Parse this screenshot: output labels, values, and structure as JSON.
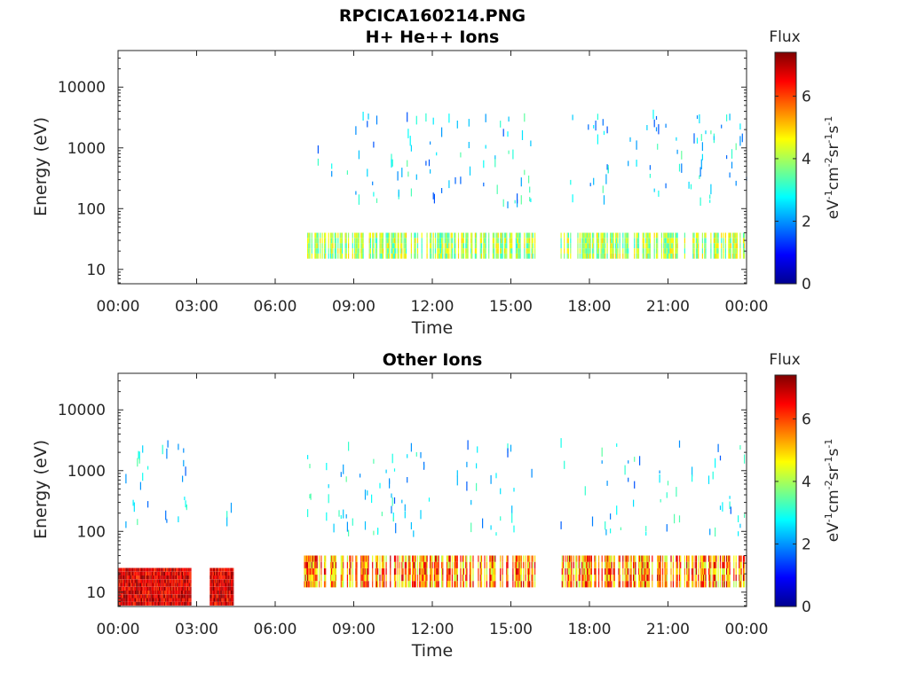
{
  "figure": {
    "title": "RPCICA160214.PNG"
  },
  "colors": {
    "axis": "#262626",
    "colormap": [
      "#00008f",
      "#0000ff",
      "#0080ff",
      "#00ffff",
      "#80ff80",
      "#ffff00",
      "#ff8000",
      "#ff0000",
      "#800000"
    ]
  },
  "chart_data": [
    {
      "type": "heatmap",
      "title": "H+ He++ Ions",
      "xlabel": "Time",
      "ylabel": "Energy (eV)",
      "x_ticks": [
        "00:00",
        "03:00",
        "06:00",
        "09:00",
        "12:00",
        "15:00",
        "18:00",
        "21:00",
        "00:00"
      ],
      "x_range_hours": [
        0,
        24
      ],
      "y_scale": "log",
      "y_ticks": [
        "10",
        "100",
        "1000",
        "10000"
      ],
      "y_range": [
        5.8,
        40000
      ],
      "colorbar": {
        "title": "Flux",
        "label": "eV-1cm-2sr-1s-1",
        "ticks": [
          "0",
          "2",
          "4",
          "6"
        ],
        "range": [
          0,
          7.4
        ]
      },
      "observed_intervals_hours": [
        [
          7.1,
          15.9
        ],
        [
          16.9,
          24.0
        ]
      ],
      "bands": [
        {
          "name": "low energy band",
          "energy_eV": [
            15,
            40
          ],
          "flux": [
            3,
            5
          ]
        },
        {
          "name": "high energy scatter",
          "energy_eV": [
            100,
            3000
          ],
          "flux": [
            1.5,
            3.5
          ]
        }
      ]
    },
    {
      "type": "heatmap",
      "title": "Other Ions",
      "xlabel": "Time",
      "ylabel": "Energy (eV)",
      "x_ticks": [
        "00:00",
        "03:00",
        "06:00",
        "09:00",
        "12:00",
        "15:00",
        "18:00",
        "21:00",
        "00:00"
      ],
      "x_range_hours": [
        0,
        24
      ],
      "y_scale": "log",
      "y_ticks": [
        "10",
        "100",
        "1000",
        "10000"
      ],
      "y_range": [
        5.8,
        40000
      ],
      "colorbar": {
        "title": "Flux",
        "label": "eV-1cm-2sr-1s-1",
        "ticks": [
          "0",
          "2",
          "4",
          "6"
        ],
        "range": [
          0,
          7.4
        ]
      },
      "observed_intervals_hours": [
        [
          0.0,
          2.8
        ],
        [
          3.5,
          4.4
        ],
        [
          7.1,
          15.9
        ],
        [
          16.9,
          24.0
        ]
      ],
      "bands": [
        {
          "name": "intense low energy band",
          "hours": [
            0.0,
            4.4
          ],
          "energy_eV": [
            6,
            25
          ],
          "flux": [
            6,
            7.4
          ]
        },
        {
          "name": "low energy band",
          "hours": [
            7.1,
            24.0
          ],
          "energy_eV": [
            12,
            40
          ],
          "flux": [
            4,
            7
          ]
        },
        {
          "name": "high energy scatter",
          "energy_eV": [
            80,
            2500
          ],
          "flux": [
            1.5,
            3.5
          ]
        }
      ]
    }
  ]
}
